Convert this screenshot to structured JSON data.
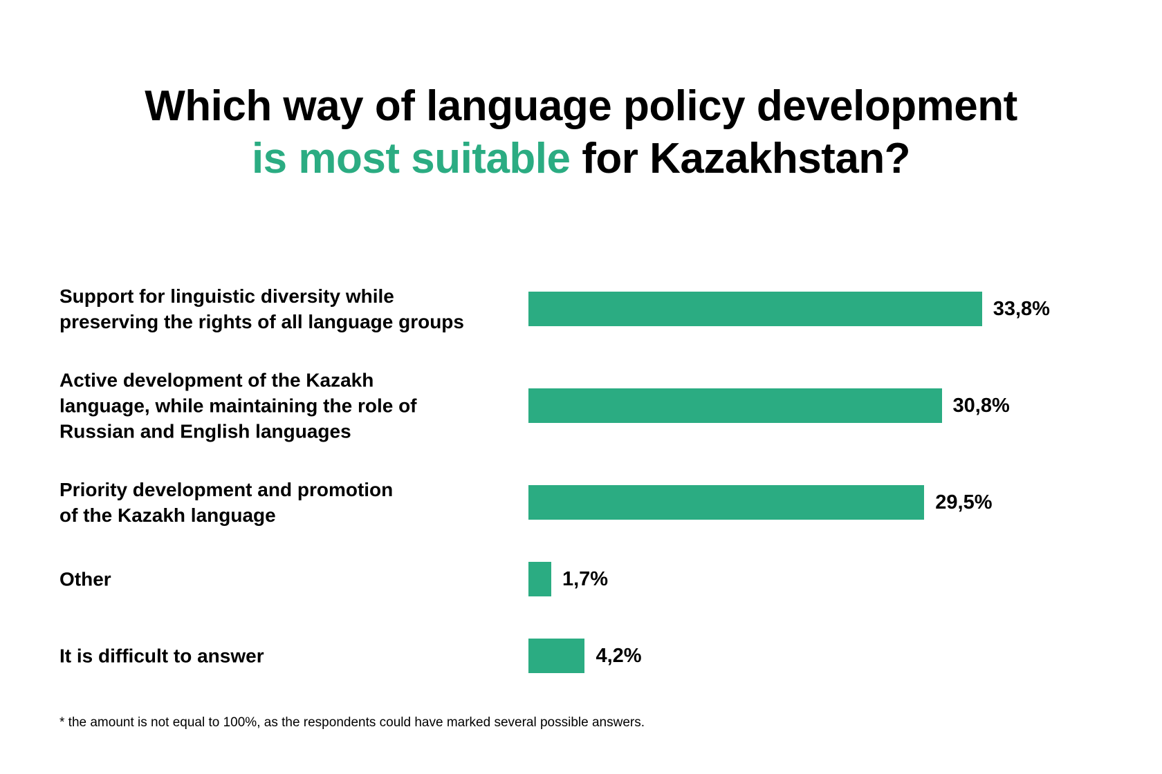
{
  "title": {
    "line1": "Which way of language policy development",
    "line2_accent": "is most suitable",
    "line2_rest": " for Kazakhstan?"
  },
  "colors": {
    "accent": "#2bac82",
    "bar": "#2bac82",
    "text": "#000000",
    "background": "#ffffff"
  },
  "chart_data": {
    "type": "bar",
    "orientation": "horizontal",
    "categories": [
      "Support for linguistic diversity while\npreserving the rights of all language groups",
      "Active development of the Kazakh\nlanguage, while maintaining the role of\nRussian and English languages",
      "Priority development and promotion\nof the Kazakh language",
      "Other",
      "It is difficult to answer"
    ],
    "values": [
      33.8,
      30.8,
      29.5,
      1.7,
      4.2
    ],
    "value_labels": [
      "33,8%",
      "30,8%",
      "29,5%",
      "1,7%",
      "4,2%"
    ],
    "unit": "%",
    "grid": false,
    "legend": "none"
  },
  "footnote": "* the amount is not equal to 100%, as the respondents could have marked several possible answers."
}
